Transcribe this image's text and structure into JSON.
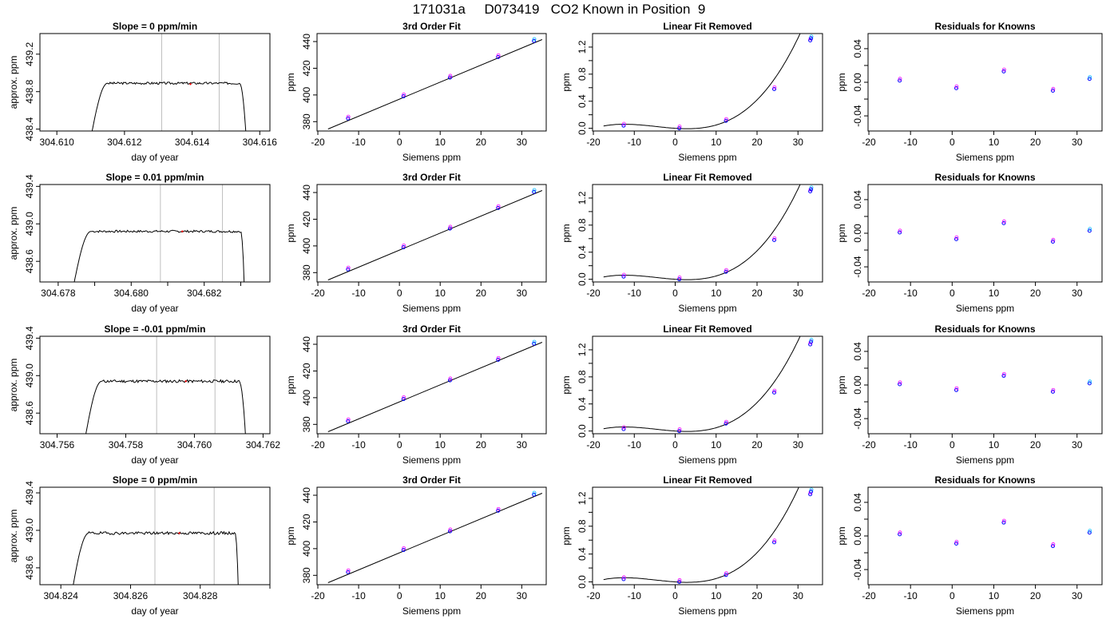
{
  "page": {
    "title": "171031a     D073419   CO2 Known in Position  9"
  },
  "chart_data": [
    {
      "type": "line",
      "row": 1,
      "panel": "trace",
      "title": "Slope =  0  ppm/min",
      "xlabel": "day of year",
      "ylabel": "approx. ppm",
      "xlim": [
        304.6095,
        304.6163
      ],
      "ylim": [
        438.38,
        439.42
      ],
      "xticks": [
        304.61,
        304.612,
        304.614,
        304.616
      ],
      "yticks": [
        438.4,
        438.8,
        439.2
      ],
      "yticks_labeled": [
        438.4,
        438.8,
        439.2
      ],
      "xtick_decimals": 3,
      "ytick_decimals": 1,
      "vlines": [
        304.6131,
        304.6148
      ],
      "trace": {
        "start": 304.611,
        "rise_end": 304.6115,
        "end": 304.6156,
        "fall_start": 304.6154,
        "base": 438.3,
        "plateau": 438.89,
        "amp": 0.012,
        "seed": 3
      },
      "mark": {
        "x": 304.61395,
        "y": 438.88
      }
    },
    {
      "type": "line",
      "row": 1,
      "panel": "fit",
      "title": "3rd Order Fit",
      "xlabel": "Siemens ppm",
      "ylabel": "ppm",
      "xlim": [
        -20.2,
        36
      ],
      "ylim": [
        373,
        446
      ],
      "xticks": [
        -20,
        -10,
        0,
        10,
        20,
        30
      ],
      "yticks": [
        380,
        400,
        420,
        440
      ],
      "yticks_labeled": [
        380,
        400,
        420,
        440
      ],
      "xtick_decimals": 0,
      "ytick_decimals": 0,
      "curve": {
        "kind": "line",
        "x0": -17.5,
        "y0": 374.5,
        "x1": 35,
        "y1": 441.5
      },
      "points": [
        [
          -12.6,
          382.4
        ],
        [
          1,
          399
        ],
        [
          12.4,
          413
        ],
        [
          24.2,
          428.4
        ],
        [
          33,
          440.5
        ]
      ]
    },
    {
      "type": "line",
      "row": 1,
      "panel": "linear_removed",
      "title": "Linear Fit Removed",
      "xlabel": "Siemens ppm",
      "ylabel": "ppm",
      "xlim": [
        -20.2,
        36
      ],
      "ylim": [
        -0.04,
        1.4
      ],
      "xticks": [
        -20,
        -10,
        0,
        10,
        20,
        30
      ],
      "yticks": [
        0,
        0.2,
        0.4,
        0.6,
        0.8,
        1.0,
        1.2
      ],
      "yticks_labeled": [
        0,
        0.4,
        0.8,
        1.2
      ],
      "xtick_decimals": 0,
      "ytick_decimals": 1,
      "curve": {
        "kind": "cubic",
        "a": 3.65e-05,
        "b": 0.00052,
        "c": -0.004,
        "d": 0,
        "xmin": -17.5,
        "xmax": 34.8
      },
      "points": [
        [
          -12.6,
          0.04
        ],
        [
          1,
          0
        ],
        [
          12.4,
          0.11
        ],
        [
          24.2,
          0.58
        ],
        [
          33,
          1.3
        ],
        [
          33.2,
          1.33
        ]
      ]
    },
    {
      "type": "scatter",
      "row": 1,
      "panel": "residuals",
      "title": "Residuals for Knowns",
      "xlabel": "Siemens ppm",
      "ylabel": "ppm",
      "xlim": [
        -20.2,
        36
      ],
      "ylim": [
        -0.058,
        0.058
      ],
      "xticks": [
        -20,
        -10,
        0,
        10,
        20,
        30
      ],
      "yticks": [
        -0.04,
        -0.02,
        0,
        0.02,
        0.04
      ],
      "yticks_labeled": [
        -0.04,
        0,
        0.04
      ],
      "xtick_decimals": 0,
      "ytick_decimals": 2,
      "points": [
        [
          -12.6,
          0.002
        ],
        [
          1,
          -0.007
        ],
        [
          12.4,
          0.013
        ],
        [
          24.2,
          -0.01
        ],
        [
          33,
          0.004
        ]
      ]
    },
    {
      "type": "line",
      "row": 2,
      "panel": "trace",
      "title": "Slope =  0.01  ppm/min",
      "xlabel": "day of year",
      "ylabel": "approx. ppm",
      "xlim": [
        304.6775,
        304.6838
      ],
      "ylim": [
        438.38,
        439.42
      ],
      "xticks": [
        304.677,
        304.678,
        304.679,
        304.68,
        304.681,
        304.682,
        304.683
      ],
      "yticks": [
        438.6,
        439.0,
        439.4
      ],
      "yticks_labeled": [
        438.6,
        439.0,
        439.4
      ],
      "xtick_labeled": [
        304.678,
        304.68,
        304.682
      ],
      "xtick_decimals": 3,
      "ytick_decimals": 1,
      "vlines": [
        304.6808,
        304.6825
      ],
      "trace": {
        "start": 304.6784,
        "rise_end": 304.6789,
        "end": 304.6831,
        "fall_start": 304.683,
        "base": 438.3,
        "plateau": 438.92,
        "amp": 0.012,
        "seed": 7
      },
      "mark": {
        "x": 304.6814,
        "y": 438.92
      }
    },
    {
      "type": "line",
      "row": 2,
      "panel": "fit",
      "title": "3rd Order Fit",
      "xlabel": "Siemens ppm",
      "ylabel": "ppm",
      "xlim": [
        -20.2,
        36
      ],
      "ylim": [
        373,
        446
      ],
      "xticks": [
        -20,
        -10,
        0,
        10,
        20,
        30
      ],
      "yticks": [
        380,
        400,
        420,
        440
      ],
      "yticks_labeled": [
        380,
        400,
        420,
        440
      ],
      "xtick_decimals": 0,
      "ytick_decimals": 0,
      "curve": {
        "kind": "line",
        "x0": -17.5,
        "y0": 374.5,
        "x1": 35,
        "y1": 441.5
      },
      "points": [
        [
          -12.6,
          382.4
        ],
        [
          1,
          399
        ],
        [
          12.4,
          413
        ],
        [
          24.2,
          428.4
        ],
        [
          33,
          440.5
        ]
      ]
    },
    {
      "type": "line",
      "row": 2,
      "panel": "linear_removed",
      "title": "Linear Fit Removed",
      "xlabel": "Siemens ppm",
      "ylabel": "ppm",
      "xlim": [
        -20.2,
        36
      ],
      "ylim": [
        -0.04,
        1.4
      ],
      "xticks": [
        -20,
        -10,
        0,
        10,
        20,
        30
      ],
      "yticks": [
        0,
        0.2,
        0.4,
        0.6,
        0.8,
        1.0,
        1.2
      ],
      "yticks_labeled": [
        0,
        0.4,
        0.8,
        1.2
      ],
      "xtick_decimals": 0,
      "ytick_decimals": 1,
      "curve": {
        "kind": "cubic",
        "a": 3.65e-05,
        "b": 0.00052,
        "c": -0.004,
        "d": 0,
        "xmin": -17.5,
        "xmax": 34.8
      },
      "points": [
        [
          -12.6,
          0.04
        ],
        [
          1,
          0
        ],
        [
          12.4,
          0.11
        ],
        [
          24.2,
          0.58
        ],
        [
          33,
          1.3
        ],
        [
          33.2,
          1.33
        ]
      ]
    },
    {
      "type": "scatter",
      "row": 2,
      "panel": "residuals",
      "title": "Residuals for Knowns",
      "xlabel": "Siemens ppm",
      "ylabel": "ppm",
      "xlim": [
        -20.2,
        36
      ],
      "ylim": [
        -0.058,
        0.058
      ],
      "xticks": [
        -20,
        -10,
        0,
        10,
        20,
        30
      ],
      "yticks": [
        -0.04,
        -0.02,
        0,
        0.02,
        0.04
      ],
      "yticks_labeled": [
        -0.04,
        0,
        0.04
      ],
      "xtick_decimals": 0,
      "ytick_decimals": 2,
      "points": [
        [
          -12.6,
          0.001
        ],
        [
          1,
          -0.007
        ],
        [
          12.4,
          0.012
        ],
        [
          24.2,
          -0.01
        ],
        [
          33,
          0.003
        ]
      ]
    },
    {
      "type": "line",
      "row": 3,
      "panel": "trace",
      "title": "Slope =  -0.01  ppm/min",
      "xlabel": "day of year",
      "ylabel": "approx. ppm",
      "xlim": [
        304.7555,
        304.7622
      ],
      "ylim": [
        438.38,
        439.42
      ],
      "xticks": [
        304.756,
        304.758,
        304.76,
        304.762
      ],
      "yticks": [
        438.6,
        439.0,
        439.4
      ],
      "yticks_labeled": [
        438.6,
        439.0,
        439.4
      ],
      "xtick_decimals": 3,
      "ytick_decimals": 1,
      "vlines": [
        304.7589,
        304.7606
      ],
      "trace": {
        "start": 304.7568,
        "rise_end": 304.7573,
        "end": 304.7615,
        "fall_start": 304.7613,
        "base": 438.3,
        "plateau": 438.94,
        "amp": 0.015,
        "seed": 11
      },
      "mark": {
        "x": 304.75975,
        "y": 438.94
      }
    },
    {
      "type": "line",
      "row": 3,
      "panel": "fit",
      "title": "3rd Order Fit",
      "xlabel": "Siemens ppm",
      "ylabel": "ppm",
      "xlim": [
        -20.2,
        36
      ],
      "ylim": [
        373,
        446
      ],
      "xticks": [
        -20,
        -10,
        0,
        10,
        20,
        30
      ],
      "yticks": [
        380,
        400,
        420,
        440
      ],
      "yticks_labeled": [
        380,
        400,
        420,
        440
      ],
      "xtick_decimals": 0,
      "ytick_decimals": 0,
      "curve": {
        "kind": "line",
        "x0": -17.5,
        "y0": 374.5,
        "x1": 35,
        "y1": 441.5
      },
      "points": [
        [
          -12.6,
          382.4
        ],
        [
          1,
          399
        ],
        [
          12.4,
          413
        ],
        [
          24.2,
          428.4
        ],
        [
          33,
          440.5
        ]
      ]
    },
    {
      "type": "line",
      "row": 3,
      "panel": "linear_removed",
      "title": "Linear Fit Removed",
      "xlabel": "Siemens ppm",
      "ylabel": "ppm",
      "xlim": [
        -20.2,
        36
      ],
      "ylim": [
        -0.04,
        1.4
      ],
      "xticks": [
        -20,
        -10,
        0,
        10,
        20,
        30
      ],
      "yticks": [
        0,
        0.2,
        0.4,
        0.6,
        0.8,
        1.0,
        1.2
      ],
      "yticks_labeled": [
        0,
        0.4,
        0.8,
        1.2
      ],
      "xtick_decimals": 0,
      "ytick_decimals": 1,
      "curve": {
        "kind": "cubic",
        "a": 3.65e-05,
        "b": 0.00052,
        "c": -0.004,
        "d": 0,
        "xmin": -17.5,
        "xmax": 34.8
      },
      "points": [
        [
          -12.6,
          0.03
        ],
        [
          1,
          0
        ],
        [
          12.4,
          0.11
        ],
        [
          24.2,
          0.57
        ],
        [
          33,
          1.28
        ],
        [
          33.2,
          1.32
        ]
      ]
    },
    {
      "type": "scatter",
      "row": 3,
      "panel": "residuals",
      "title": "Residuals for Knowns",
      "xlabel": "Siemens ppm",
      "ylabel": "ppm",
      "xlim": [
        -20.2,
        36
      ],
      "ylim": [
        -0.058,
        0.058
      ],
      "xticks": [
        -20,
        -10,
        0,
        10,
        20,
        30
      ],
      "yticks": [
        -0.04,
        -0.02,
        0,
        0.02,
        0.04
      ],
      "yticks_labeled": [
        -0.04,
        0,
        0.04
      ],
      "xtick_decimals": 0,
      "ytick_decimals": 2,
      "points": [
        [
          -12.6,
          0.001
        ],
        [
          1,
          -0.006
        ],
        [
          12.4,
          0.011
        ],
        [
          24.2,
          -0.008
        ],
        [
          33,
          0.002
        ]
      ]
    },
    {
      "type": "line",
      "row": 4,
      "panel": "trace",
      "title": "Slope =  0  ppm/min",
      "xlabel": "day of year",
      "ylabel": "approx. ppm",
      "xlim": [
        304.8234,
        304.83
      ],
      "ylim": [
        438.42,
        439.46
      ],
      "xticks": [
        304.824,
        304.826,
        304.828,
        304.83
      ],
      "yticks": [
        438.6,
        439.0,
        439.4
      ],
      "yticks_labeled": [
        438.6,
        439.0,
        439.4
      ],
      "xtick_labeled": [
        304.824,
        304.826,
        304.828
      ],
      "xtick_decimals": 3,
      "ytick_decimals": 1,
      "vlines": [
        304.8267,
        304.8284
      ],
      "trace": {
        "start": 304.8243,
        "rise_end": 304.8248,
        "end": 304.8291,
        "fall_start": 304.829,
        "base": 438.3,
        "plateau": 438.97,
        "amp": 0.015,
        "seed": 19
      },
      "mark": {
        "x": 304.8274,
        "y": 438.97
      }
    },
    {
      "type": "line",
      "row": 4,
      "panel": "fit",
      "title": "3rd Order Fit",
      "xlabel": "Siemens ppm",
      "ylabel": "ppm",
      "xlim": [
        -20.2,
        36
      ],
      "ylim": [
        373,
        446
      ],
      "xticks": [
        -20,
        -10,
        0,
        10,
        20,
        30
      ],
      "yticks": [
        380,
        400,
        420,
        440
      ],
      "yticks_labeled": [
        380,
        400,
        420,
        440
      ],
      "xtick_decimals": 0,
      "ytick_decimals": 0,
      "curve": {
        "kind": "line",
        "x0": -17.5,
        "y0": 374.5,
        "x1": 35,
        "y1": 441.5
      },
      "points": [
        [
          -12.6,
          382.4
        ],
        [
          1,
          399
        ],
        [
          12.4,
          413
        ],
        [
          24.2,
          428.4
        ],
        [
          33,
          440.5
        ]
      ]
    },
    {
      "type": "line",
      "row": 4,
      "panel": "linear_removed",
      "title": "Linear Fit Removed",
      "xlabel": "Siemens ppm",
      "ylabel": "ppm",
      "xlim": [
        -20.2,
        36
      ],
      "ylim": [
        -0.04,
        1.36
      ],
      "xticks": [
        -20,
        -10,
        0,
        10,
        20,
        30
      ],
      "yticks": [
        0,
        0.2,
        0.4,
        0.6,
        0.8,
        1.0,
        1.2
      ],
      "yticks_labeled": [
        0,
        0.4,
        0.8,
        1.2
      ],
      "xtick_decimals": 0,
      "ytick_decimals": 1,
      "curve": {
        "kind": "cubic",
        "a": 3.65e-05,
        "b": 0.00052,
        "c": -0.004,
        "d": 0,
        "xmin": -17.5,
        "xmax": 34.8
      },
      "points": [
        [
          -12.6,
          0.04
        ],
        [
          1,
          0
        ],
        [
          12.4,
          0.1
        ],
        [
          24.2,
          0.57
        ],
        [
          33,
          1.26
        ],
        [
          33.2,
          1.3
        ]
      ]
    },
    {
      "type": "scatter",
      "row": 4,
      "panel": "residuals",
      "title": "Residuals for Knowns",
      "xlabel": "Siemens ppm",
      "ylabel": "ppm",
      "xlim": [
        -20.2,
        36
      ],
      "ylim": [
        -0.058,
        0.058
      ],
      "xticks": [
        -20,
        -10,
        0,
        10,
        20,
        30
      ],
      "yticks": [
        -0.04,
        -0.02,
        0,
        0.02,
        0.04
      ],
      "yticks_labeled": [
        -0.04,
        0,
        0.04
      ],
      "xtick_decimals": 0,
      "ytick_decimals": 2,
      "points": [
        [
          -12.6,
          0.002
        ],
        [
          1,
          -0.009
        ],
        [
          12.4,
          0.016
        ],
        [
          24.2,
          -0.012
        ],
        [
          33,
          0.004
        ]
      ]
    }
  ],
  "colors": {
    "axis": "#000000",
    "trace": "#000000",
    "fit_line": "#000000",
    "vline": "#bebebe",
    "mark": "#ff0000",
    "point_primary": "#0000ff",
    "point_secondary": "#ff00ff",
    "point_tertiary": "#00bfff"
  }
}
